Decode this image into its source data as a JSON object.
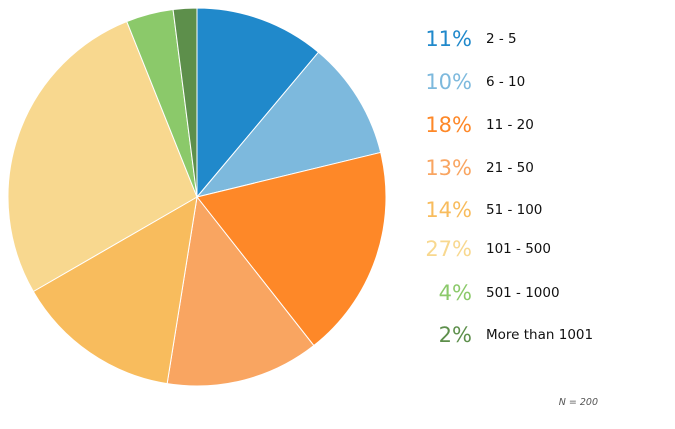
{
  "chart_data": {
    "type": "pie",
    "title": "",
    "footnote": "N = 200",
    "slices": [
      {
        "label": "2 - 5",
        "percent_label": "11%",
        "value": 11,
        "color": "#2089cb"
      },
      {
        "label": "6 - 10",
        "percent_label": "10%",
        "value": 10,
        "color": "#7db9dd"
      },
      {
        "label": "11 - 20",
        "percent_label": "18%",
        "value": 18,
        "color": "#fe8828"
      },
      {
        "label": "21 - 50",
        "percent_label": "13%",
        "value": 13,
        "color": "#f9a561"
      },
      {
        "label": "51 - 100",
        "percent_label": "14%",
        "value": 14,
        "color": "#f8bc5d"
      },
      {
        "label": "101 - 500",
        "percent_label": "27%",
        "value": 27,
        "color": "#f8d88f"
      },
      {
        "label": "501 - 1000",
        "percent_label": "4%",
        "value": 4,
        "color": "#8bc96a"
      },
      {
        "label": "More than 1001",
        "percent_label": "2%",
        "value": 2,
        "color": "#5d8f4b"
      }
    ],
    "legend_position": "right"
  }
}
